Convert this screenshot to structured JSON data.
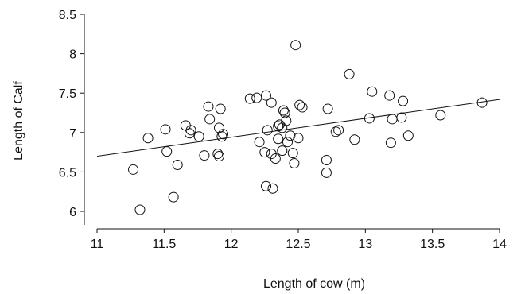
{
  "chart_data": {
    "type": "scatter",
    "title": "",
    "xlabel": "Length of cow (m)",
    "ylabel": "Length of Calf",
    "xlim": [
      11,
      14
    ],
    "ylim": [
      6,
      8.5
    ],
    "xticks": [
      "11",
      "11.5",
      "12",
      "12.5",
      "13",
      "13.5",
      "14"
    ],
    "yticks": [
      "6",
      "6.5",
      "7",
      "7.5",
      "8",
      "8.5"
    ],
    "grid": false,
    "legend": "none",
    "series": [
      {
        "points": [
          [
            11.27,
            6.53
          ],
          [
            11.32,
            6.02
          ],
          [
            11.38,
            6.93
          ],
          [
            11.51,
            7.04
          ],
          [
            11.52,
            6.76
          ],
          [
            11.57,
            6.18
          ],
          [
            11.6,
            6.59
          ],
          [
            11.66,
            7.09
          ],
          [
            11.69,
            6.99
          ],
          [
            11.7,
            7.03
          ],
          [
            11.76,
            6.95
          ],
          [
            11.8,
            6.71
          ],
          [
            11.83,
            7.33
          ],
          [
            11.84,
            7.17
          ],
          [
            11.9,
            6.73
          ],
          [
            11.91,
            6.7
          ],
          [
            11.91,
            7.06
          ],
          [
            11.92,
            7.3
          ],
          [
            11.93,
            6.95
          ],
          [
            11.94,
            6.98
          ],
          [
            12.14,
            7.43
          ],
          [
            12.19,
            7.44
          ],
          [
            12.21,
            6.88
          ],
          [
            12.25,
            6.75
          ],
          [
            12.26,
            7.47
          ],
          [
            12.26,
            6.32
          ],
          [
            12.27,
            7.03
          ],
          [
            12.3,
            7.38
          ],
          [
            12.3,
            6.73
          ],
          [
            12.31,
            6.29
          ],
          [
            12.33,
            6.67
          ],
          [
            12.35,
            6.92
          ],
          [
            12.35,
            7.08
          ],
          [
            12.36,
            7.1
          ],
          [
            12.38,
            7.06
          ],
          [
            12.38,
            6.77
          ],
          [
            12.39,
            7.28
          ],
          [
            12.4,
            7.25
          ],
          [
            12.41,
            7.15
          ],
          [
            12.42,
            6.88
          ],
          [
            12.44,
            6.96
          ],
          [
            12.46,
            6.74
          ],
          [
            12.47,
            6.61
          ],
          [
            12.48,
            8.11
          ],
          [
            12.5,
            6.93
          ],
          [
            12.51,
            7.35
          ],
          [
            12.53,
            7.32
          ],
          [
            12.71,
            6.65
          ],
          [
            12.71,
            6.49
          ],
          [
            12.72,
            7.3
          ],
          [
            12.78,
            7.01
          ],
          [
            12.8,
            7.03
          ],
          [
            12.88,
            7.74
          ],
          [
            12.92,
            6.91
          ],
          [
            13.03,
            7.18
          ],
          [
            13.05,
            7.52
          ],
          [
            13.18,
            7.47
          ],
          [
            13.19,
            6.87
          ],
          [
            13.2,
            7.17
          ],
          [
            13.27,
            7.19
          ],
          [
            13.28,
            7.4
          ],
          [
            13.32,
            6.96
          ],
          [
            13.56,
            7.22
          ],
          [
            13.87,
            7.38
          ]
        ]
      }
    ],
    "trendline": {
      "x": [
        11,
        14
      ],
      "y": [
        6.7,
        7.42
      ]
    }
  }
}
